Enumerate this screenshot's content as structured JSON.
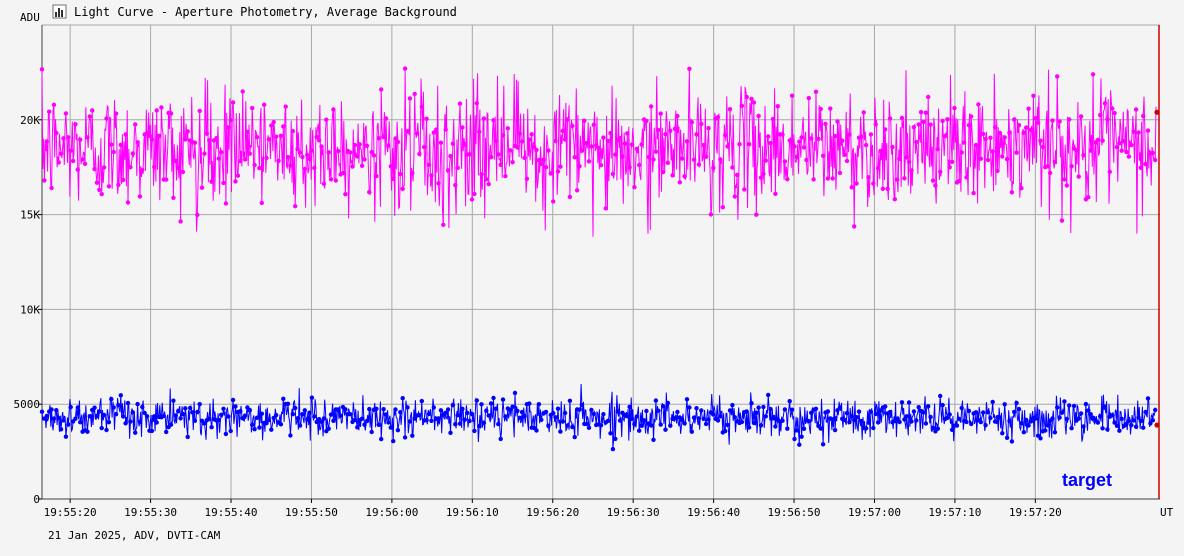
{
  "window": {
    "title": "Light Curve - Aperture Photometry, Average Background",
    "icon": "chart-window-icon"
  },
  "footer": {
    "info": "21 Jan 2025, ADV, DVTI-CAM"
  },
  "colors": {
    "background": "#f4f4f4",
    "grid": "#a8a8a8",
    "series_background": "#ff00ff",
    "series_target": "#0000ff",
    "cursor": "#cc0000"
  },
  "chart_data": {
    "type": "line",
    "title": "Light Curve - Aperture Photometry, Average Background",
    "ylabel": "ADU",
    "xlabel": "UT",
    "ylim": [
      0,
      25000
    ],
    "xlim": [
      "19:55:16.5",
      "19:57:35.5"
    ],
    "grid": true,
    "y_ticks": [
      {
        "value": 0,
        "label": "0"
      },
      {
        "value": 5000,
        "label": "5000"
      },
      {
        "value": 10000,
        "label": "10K"
      },
      {
        "value": 15000,
        "label": "15K"
      },
      {
        "value": 20000,
        "label": "20K"
      }
    ],
    "x_ticks": [
      "19:55:20",
      "19:55:30",
      "19:55:40",
      "19:55:50",
      "19:56:00",
      "19:56:10",
      "19:56:20",
      "19:56:30",
      "19:56:40",
      "19:56:50",
      "19:57:00",
      "19:57:10",
      "19:57:20"
    ],
    "legend": {
      "placement": "bottom-right",
      "entries": [
        "target"
      ]
    },
    "series": [
      {
        "name": "",
        "role": "background",
        "mean": 18500,
        "noise_sd": 1500,
        "min_observed": 13700,
        "max_observed": 22700,
        "approx_points": 1400,
        "sample_every_2s": [
          {
            "t": "19:55:20",
            "y": 19200
          },
          {
            "t": "19:55:22",
            "y": 17500
          },
          {
            "t": "19:55:24",
            "y": 20100
          },
          {
            "t": "19:55:26",
            "y": 18400
          },
          {
            "t": "19:55:28",
            "y": 16200
          },
          {
            "t": "19:55:30",
            "y": 19800
          },
          {
            "t": "19:55:32",
            "y": 21500
          },
          {
            "t": "19:55:34",
            "y": 17900
          },
          {
            "t": "19:55:36",
            "y": 18800
          },
          {
            "t": "19:55:38",
            "y": 16700
          },
          {
            "t": "19:55:40",
            "y": 20400
          },
          {
            "t": "19:55:42",
            "y": 18100
          },
          {
            "t": "19:55:44",
            "y": 19600
          },
          {
            "t": "19:55:46",
            "y": 17300
          },
          {
            "t": "19:55:48",
            "y": 18900
          },
          {
            "t": "19:55:50",
            "y": 15600
          },
          {
            "t": "19:55:52",
            "y": 19900
          },
          {
            "t": "19:55:54",
            "y": 18200
          },
          {
            "t": "19:55:56",
            "y": 20700
          },
          {
            "t": "19:55:58",
            "y": 17600
          },
          {
            "t": "19:56:00",
            "y": 18500
          },
          {
            "t": "19:56:02",
            "y": 19300
          },
          {
            "t": "19:56:04",
            "y": 17100
          },
          {
            "t": "19:56:06",
            "y": 20900
          },
          {
            "t": "19:56:08",
            "y": 18600
          },
          {
            "t": "19:56:10",
            "y": 17800
          },
          {
            "t": "19:56:12",
            "y": 19400
          },
          {
            "t": "19:56:14",
            "y": 18000
          },
          {
            "t": "19:56:16",
            "y": 20300
          },
          {
            "t": "19:56:18",
            "y": 17400
          },
          {
            "t": "19:56:20",
            "y": 19100
          },
          {
            "t": "19:56:22",
            "y": 18700
          },
          {
            "t": "19:56:24",
            "y": 14600
          },
          {
            "t": "19:56:26",
            "y": 19700
          },
          {
            "t": "19:56:28",
            "y": 18300
          },
          {
            "t": "19:56:30",
            "y": 20200
          },
          {
            "t": "19:56:32",
            "y": 17200
          },
          {
            "t": "19:56:34",
            "y": 18900
          },
          {
            "t": "19:56:36",
            "y": 19500
          },
          {
            "t": "19:56:38",
            "y": 17700
          },
          {
            "t": "19:56:40",
            "y": 20600
          },
          {
            "t": "19:56:42",
            "y": 18400
          },
          {
            "t": "19:56:44",
            "y": 19000
          },
          {
            "t": "19:56:46",
            "y": 17000
          },
          {
            "t": "19:56:48",
            "y": 19800
          },
          {
            "t": "19:56:50",
            "y": 18100
          },
          {
            "t": "19:56:52",
            "y": 20000
          },
          {
            "t": "19:56:54",
            "y": 17500
          },
          {
            "t": "19:56:56",
            "y": 19300
          },
          {
            "t": "19:56:58",
            "y": 18800
          },
          {
            "t": "19:57:00",
            "y": 16900
          },
          {
            "t": "19:57:02",
            "y": 19600
          },
          {
            "t": "19:57:04",
            "y": 18200
          },
          {
            "t": "19:57:06",
            "y": 20400
          },
          {
            "t": "19:57:08",
            "y": 17300
          },
          {
            "t": "19:57:10",
            "y": 19100
          },
          {
            "t": "19:57:12",
            "y": 18600
          },
          {
            "t": "19:57:14",
            "y": 17900
          },
          {
            "t": "19:57:16",
            "y": 19900
          },
          {
            "t": "19:57:18",
            "y": 18300
          },
          {
            "t": "19:57:20",
            "y": 20100
          },
          {
            "t": "19:57:22",
            "y": 17600
          },
          {
            "t": "19:57:24",
            "y": 19200
          },
          {
            "t": "19:57:26",
            "y": 18000
          },
          {
            "t": "19:57:28",
            "y": 18700
          },
          {
            "t": "19:57:30",
            "y": 19400
          },
          {
            "t": "19:57:32",
            "y": 17800
          },
          {
            "t": "19:57:34",
            "y": 18400
          }
        ]
      },
      {
        "name": "target",
        "role": "target",
        "mean": 4300,
        "noise_sd": 500,
        "min_observed": 2300,
        "max_observed": 6700,
        "approx_points": 1400,
        "sample_every_2s": [
          {
            "t": "19:55:20",
            "y": 4500
          },
          {
            "t": "19:55:22",
            "y": 5400
          },
          {
            "t": "19:55:24",
            "y": 3900
          },
          {
            "t": "19:55:26",
            "y": 4200
          },
          {
            "t": "19:55:28",
            "y": 4700
          },
          {
            "t": "19:55:30",
            "y": 3800
          },
          {
            "t": "19:55:32",
            "y": 4600
          },
          {
            "t": "19:55:34",
            "y": 4100
          },
          {
            "t": "19:55:36",
            "y": 5000
          },
          {
            "t": "19:55:38",
            "y": 3600
          },
          {
            "t": "19:55:40",
            "y": 4400
          },
          {
            "t": "19:55:42",
            "y": 4900
          },
          {
            "t": "19:55:44",
            "y": 4000
          },
          {
            "t": "19:55:46",
            "y": 4300
          },
          {
            "t": "19:55:48",
            "y": 3700
          },
          {
            "t": "19:55:50",
            "y": 4800
          },
          {
            "t": "19:55:52",
            "y": 4200
          },
          {
            "t": "19:55:54",
            "y": 3500
          },
          {
            "t": "19:55:56",
            "y": 4500
          },
          {
            "t": "19:55:58",
            "y": 4100
          },
          {
            "t": "19:56:00",
            "y": 4700
          },
          {
            "t": "19:56:02",
            "y": 3900
          },
          {
            "t": "19:56:04",
            "y": 4400
          },
          {
            "t": "19:56:06",
            "y": 4000
          },
          {
            "t": "19:56:08",
            "y": 4600
          },
          {
            "t": "19:56:10",
            "y": 5800
          },
          {
            "t": "19:56:12",
            "y": 4200
          },
          {
            "t": "19:56:14",
            "y": 3800
          },
          {
            "t": "19:56:16",
            "y": 4500
          },
          {
            "t": "19:56:18",
            "y": 4100
          },
          {
            "t": "19:56:20",
            "y": 4900
          },
          {
            "t": "19:56:22",
            "y": 3600
          },
          {
            "t": "19:56:24",
            "y": 4300
          },
          {
            "t": "19:56:26",
            "y": 4000
          },
          {
            "t": "19:56:28",
            "y": 4700
          },
          {
            "t": "19:56:30",
            "y": 3900
          },
          {
            "t": "19:56:32",
            "y": 4400
          },
          {
            "t": "19:56:34",
            "y": 4800
          },
          {
            "t": "19:56:36",
            "y": 3700
          },
          {
            "t": "19:56:38",
            "y": 4200
          },
          {
            "t": "19:56:40",
            "y": 4600
          },
          {
            "t": "19:56:42",
            "y": 4000
          },
          {
            "t": "19:56:44",
            "y": 5100
          },
          {
            "t": "19:56:46",
            "y": 3800
          },
          {
            "t": "19:56:48",
            "y": 4300
          },
          {
            "t": "19:56:50",
            "y": 4500
          },
          {
            "t": "19:56:52",
            "y": 3900
          },
          {
            "t": "19:56:54",
            "y": 4700
          },
          {
            "t": "19:56:56",
            "y": 4100
          },
          {
            "t": "19:56:58",
            "y": 5200
          },
          {
            "t": "19:57:00",
            "y": 3800
          },
          {
            "t": "19:57:02",
            "y": 4400
          },
          {
            "t": "19:57:04",
            "y": 4000
          },
          {
            "t": "19:57:06",
            "y": 4600
          },
          {
            "t": "19:57:08",
            "y": 3700
          },
          {
            "t": "19:57:10",
            "y": 4300
          },
          {
            "t": "19:57:12",
            "y": 4800
          },
          {
            "t": "19:57:14",
            "y": 3900
          },
          {
            "t": "19:57:16",
            "y": 4200
          },
          {
            "t": "19:57:18",
            "y": 3600
          },
          {
            "t": "19:57:20",
            "y": 4500
          },
          {
            "t": "19:57:22",
            "y": 4100
          },
          {
            "t": "19:57:24",
            "y": 4700
          },
          {
            "t": "19:57:26",
            "y": 4300
          },
          {
            "t": "19:57:28",
            "y": 4900
          },
          {
            "t": "19:57:30",
            "y": 4400
          },
          {
            "t": "19:57:32",
            "y": 4600
          },
          {
            "t": "19:57:34",
            "y": 4200
          }
        ]
      }
    ]
  }
}
